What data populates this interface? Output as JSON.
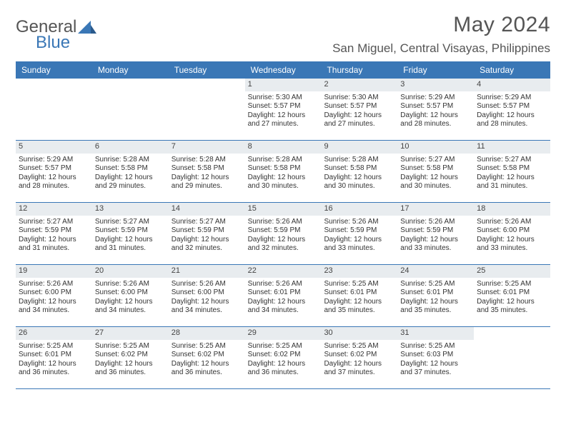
{
  "brand": {
    "part1": "General",
    "part2": "Blue"
  },
  "title": "May 2024",
  "location": "San Miguel, Central Visayas, Philippines",
  "colors": {
    "header_blue": "#3a77b6",
    "daynum_bg": "#e8ecef",
    "text": "#333333",
    "bg": "#ffffff"
  },
  "fonts": {
    "body_size": 10,
    "title_size": 30,
    "location_size": 17,
    "weekday_size": 12
  },
  "weekdays": [
    "Sunday",
    "Monday",
    "Tuesday",
    "Wednesday",
    "Thursday",
    "Friday",
    "Saturday"
  ],
  "weeks": [
    [
      {
        "num": "",
        "lines": []
      },
      {
        "num": "",
        "lines": []
      },
      {
        "num": "",
        "lines": []
      },
      {
        "num": "1",
        "lines": [
          "Sunrise: 5:30 AM",
          "Sunset: 5:57 PM",
          "Daylight: 12 hours and 27 minutes."
        ]
      },
      {
        "num": "2",
        "lines": [
          "Sunrise: 5:30 AM",
          "Sunset: 5:57 PM",
          "Daylight: 12 hours and 27 minutes."
        ]
      },
      {
        "num": "3",
        "lines": [
          "Sunrise: 5:29 AM",
          "Sunset: 5:57 PM",
          "Daylight: 12 hours and 28 minutes."
        ]
      },
      {
        "num": "4",
        "lines": [
          "Sunrise: 5:29 AM",
          "Sunset: 5:57 PM",
          "Daylight: 12 hours and 28 minutes."
        ]
      }
    ],
    [
      {
        "num": "5",
        "lines": [
          "Sunrise: 5:29 AM",
          "Sunset: 5:57 PM",
          "Daylight: 12 hours and 28 minutes."
        ]
      },
      {
        "num": "6",
        "lines": [
          "Sunrise: 5:28 AM",
          "Sunset: 5:58 PM",
          "Daylight: 12 hours and 29 minutes."
        ]
      },
      {
        "num": "7",
        "lines": [
          "Sunrise: 5:28 AM",
          "Sunset: 5:58 PM",
          "Daylight: 12 hours and 29 minutes."
        ]
      },
      {
        "num": "8",
        "lines": [
          "Sunrise: 5:28 AM",
          "Sunset: 5:58 PM",
          "Daylight: 12 hours and 30 minutes."
        ]
      },
      {
        "num": "9",
        "lines": [
          "Sunrise: 5:28 AM",
          "Sunset: 5:58 PM",
          "Daylight: 12 hours and 30 minutes."
        ]
      },
      {
        "num": "10",
        "lines": [
          "Sunrise: 5:27 AM",
          "Sunset: 5:58 PM",
          "Daylight: 12 hours and 30 minutes."
        ]
      },
      {
        "num": "11",
        "lines": [
          "Sunrise: 5:27 AM",
          "Sunset: 5:58 PM",
          "Daylight: 12 hours and 31 minutes."
        ]
      }
    ],
    [
      {
        "num": "12",
        "lines": [
          "Sunrise: 5:27 AM",
          "Sunset: 5:59 PM",
          "Daylight: 12 hours and 31 minutes."
        ]
      },
      {
        "num": "13",
        "lines": [
          "Sunrise: 5:27 AM",
          "Sunset: 5:59 PM",
          "Daylight: 12 hours and 31 minutes."
        ]
      },
      {
        "num": "14",
        "lines": [
          "Sunrise: 5:27 AM",
          "Sunset: 5:59 PM",
          "Daylight: 12 hours and 32 minutes."
        ]
      },
      {
        "num": "15",
        "lines": [
          "Sunrise: 5:26 AM",
          "Sunset: 5:59 PM",
          "Daylight: 12 hours and 32 minutes."
        ]
      },
      {
        "num": "16",
        "lines": [
          "Sunrise: 5:26 AM",
          "Sunset: 5:59 PM",
          "Daylight: 12 hours and 33 minutes."
        ]
      },
      {
        "num": "17",
        "lines": [
          "Sunrise: 5:26 AM",
          "Sunset: 5:59 PM",
          "Daylight: 12 hours and 33 minutes."
        ]
      },
      {
        "num": "18",
        "lines": [
          "Sunrise: 5:26 AM",
          "Sunset: 6:00 PM",
          "Daylight: 12 hours and 33 minutes."
        ]
      }
    ],
    [
      {
        "num": "19",
        "lines": [
          "Sunrise: 5:26 AM",
          "Sunset: 6:00 PM",
          "Daylight: 12 hours and 34 minutes."
        ]
      },
      {
        "num": "20",
        "lines": [
          "Sunrise: 5:26 AM",
          "Sunset: 6:00 PM",
          "Daylight: 12 hours and 34 minutes."
        ]
      },
      {
        "num": "21",
        "lines": [
          "Sunrise: 5:26 AM",
          "Sunset: 6:00 PM",
          "Daylight: 12 hours and 34 minutes."
        ]
      },
      {
        "num": "22",
        "lines": [
          "Sunrise: 5:26 AM",
          "Sunset: 6:01 PM",
          "Daylight: 12 hours and 34 minutes."
        ]
      },
      {
        "num": "23",
        "lines": [
          "Sunrise: 5:25 AM",
          "Sunset: 6:01 PM",
          "Daylight: 12 hours and 35 minutes."
        ]
      },
      {
        "num": "24",
        "lines": [
          "Sunrise: 5:25 AM",
          "Sunset: 6:01 PM",
          "Daylight: 12 hours and 35 minutes."
        ]
      },
      {
        "num": "25",
        "lines": [
          "Sunrise: 5:25 AM",
          "Sunset: 6:01 PM",
          "Daylight: 12 hours and 35 minutes."
        ]
      }
    ],
    [
      {
        "num": "26",
        "lines": [
          "Sunrise: 5:25 AM",
          "Sunset: 6:01 PM",
          "Daylight: 12 hours and 36 minutes."
        ]
      },
      {
        "num": "27",
        "lines": [
          "Sunrise: 5:25 AM",
          "Sunset: 6:02 PM",
          "Daylight: 12 hours and 36 minutes."
        ]
      },
      {
        "num": "28",
        "lines": [
          "Sunrise: 5:25 AM",
          "Sunset: 6:02 PM",
          "Daylight: 12 hours and 36 minutes."
        ]
      },
      {
        "num": "29",
        "lines": [
          "Sunrise: 5:25 AM",
          "Sunset: 6:02 PM",
          "Daylight: 12 hours and 36 minutes."
        ]
      },
      {
        "num": "30",
        "lines": [
          "Sunrise: 5:25 AM",
          "Sunset: 6:02 PM",
          "Daylight: 12 hours and 37 minutes."
        ]
      },
      {
        "num": "31",
        "lines": [
          "Sunrise: 5:25 AM",
          "Sunset: 6:03 PM",
          "Daylight: 12 hours and 37 minutes."
        ]
      },
      {
        "num": "",
        "lines": []
      }
    ]
  ]
}
